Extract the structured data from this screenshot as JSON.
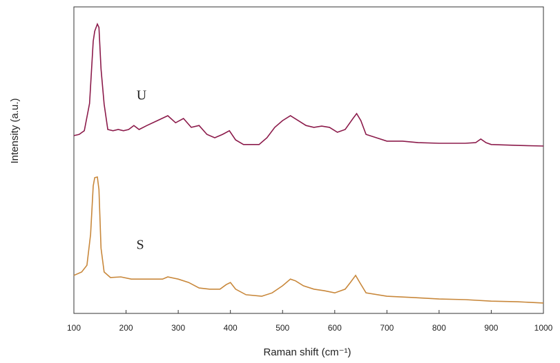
{
  "chart_data": {
    "type": "line",
    "x_label": "Raman shift (cm⁻¹)",
    "y_label": "Intensity (a.u.)",
    "xlim": [
      100,
      1000
    ],
    "ylim": [
      0,
      100
    ],
    "xticks": [
      100,
      200,
      300,
      400,
      500,
      600,
      700,
      800,
      900,
      1000
    ],
    "series": [
      {
        "name": "U",
        "color": "#8b1a4a",
        "x": [
          100,
          110,
          120,
          130,
          137,
          140,
          145,
          148,
          152,
          158,
          165,
          175,
          185,
          195,
          205,
          215,
          225,
          240,
          260,
          280,
          295,
          310,
          325,
          340,
          355,
          370,
          385,
          398,
          410,
          425,
          440,
          455,
          470,
          485,
          500,
          515,
          530,
          545,
          560,
          575,
          590,
          605,
          620,
          635,
          642,
          650,
          660,
          680,
          700,
          730,
          760,
          800,
          850,
          870,
          880,
          890,
          900,
          950,
          1000
        ],
        "values": [
          58.0,
          58.4,
          59.6,
          68.5,
          88.8,
          92.1,
          94.4,
          93.3,
          79.8,
          68.3,
          60.0,
          59.6,
          60.0,
          59.6,
          60.0,
          61.3,
          60.0,
          61.3,
          62.9,
          64.5,
          62.2,
          63.6,
          60.7,
          61.3,
          58.4,
          57.3,
          58.4,
          59.6,
          56.6,
          55.1,
          55.1,
          55.1,
          57.3,
          60.7,
          62.9,
          64.5,
          62.9,
          61.3,
          60.7,
          61.1,
          60.7,
          59.1,
          60.0,
          63.6,
          65.2,
          62.9,
          58.4,
          57.3,
          56.2,
          56.2,
          55.7,
          55.5,
          55.5,
          55.7,
          56.9,
          55.7,
          55.1,
          54.8,
          54.6
        ]
      },
      {
        "name": "S",
        "color": "#c8873a",
        "x": [
          100,
          115,
          125,
          132,
          137,
          140,
          145,
          148,
          152,
          158,
          170,
          190,
          210,
          240,
          270,
          280,
          300,
          320,
          340,
          360,
          380,
          392,
          400,
          410,
          430,
          460,
          480,
          500,
          515,
          525,
          540,
          560,
          580,
          600,
          620,
          630,
          640,
          648,
          660,
          700,
          750,
          800,
          850,
          900,
          950,
          1000
        ],
        "values": [
          12.4,
          13.5,
          15.7,
          25.8,
          41.6,
          44.3,
          44.5,
          40.4,
          21.3,
          13.5,
          11.7,
          11.9,
          11.2,
          11.2,
          11.2,
          11.9,
          11.2,
          10.1,
          8.3,
          7.9,
          7.9,
          9.4,
          10.1,
          7.9,
          6.1,
          5.6,
          6.7,
          9.0,
          11.2,
          10.6,
          9.0,
          7.9,
          7.4,
          6.7,
          7.9,
          10.1,
          12.4,
          10.1,
          6.7,
          5.6,
          5.2,
          4.7,
          4.5,
          4.0,
          3.8,
          3.4
        ]
      }
    ]
  }
}
